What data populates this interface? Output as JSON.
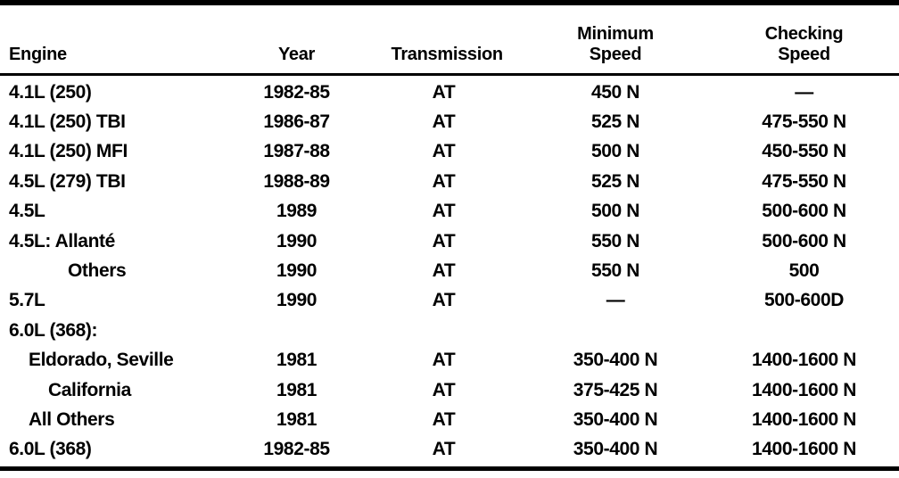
{
  "page": {
    "kind": "scanned specification table",
    "paper_color": "#ffffff",
    "ink_color": "#000000"
  },
  "table": {
    "columns": [
      {
        "id": "engine",
        "label": "Engine"
      },
      {
        "id": "year",
        "label": "Year"
      },
      {
        "id": "transmission",
        "label": "Transmission"
      },
      {
        "id": "minimum_speed",
        "label": "Minimum Speed"
      },
      {
        "id": "checking_speed",
        "label": "Checking Speed"
      }
    ],
    "rows": [
      {
        "engine": "4.1L (250)",
        "indent": 0,
        "year": "1982-85",
        "transmission": "AT",
        "minimum_speed": "450 N",
        "checking_speed": "—"
      },
      {
        "engine": "4.1L (250) TBI",
        "indent": 0,
        "year": "1986-87",
        "transmission": "AT",
        "minimum_speed": "525 N",
        "checking_speed": "475-550 N"
      },
      {
        "engine": "4.1L (250) MFI",
        "indent": 0,
        "year": "1987-88",
        "transmission": "AT",
        "minimum_speed": "500 N",
        "checking_speed": "450-550 N"
      },
      {
        "engine": "4.5L (279) TBI",
        "indent": 0,
        "year": "1988-89",
        "transmission": "AT",
        "minimum_speed": "525 N",
        "checking_speed": "475-550 N"
      },
      {
        "engine": "4.5L",
        "indent": 0,
        "year": "1989",
        "transmission": "AT",
        "minimum_speed": "500 N",
        "checking_speed": "500-600 N"
      },
      {
        "engine": "4.5L: Allanté",
        "indent": 0,
        "year": "1990",
        "transmission": "AT",
        "minimum_speed": "550 N",
        "checking_speed": "500-600 N"
      },
      {
        "engine": "Others",
        "indent": 3,
        "year": "1990",
        "transmission": "AT",
        "minimum_speed": "550 N",
        "checking_speed": "500"
      },
      {
        "engine": "5.7L",
        "indent": 0,
        "year": "1990",
        "transmission": "AT",
        "minimum_speed": "—",
        "checking_speed": "500-600D"
      },
      {
        "engine": "6.0L (368):",
        "indent": 0,
        "year": "",
        "transmission": "",
        "minimum_speed": "",
        "checking_speed": ""
      },
      {
        "engine": "Eldorado, Seville",
        "indent": 1,
        "year": "1981",
        "transmission": "AT",
        "minimum_speed": "350-400 N",
        "checking_speed": "1400-1600 N"
      },
      {
        "engine": "California",
        "indent": 2,
        "year": "1981",
        "transmission": "AT",
        "minimum_speed": "375-425 N",
        "checking_speed": "1400-1600 N"
      },
      {
        "engine": "All Others",
        "indent": 1,
        "year": "1981",
        "transmission": "AT",
        "minimum_speed": "350-400 N",
        "checking_speed": "1400-1600 N"
      },
      {
        "engine": "6.0L (368)",
        "indent": 0,
        "year": "1982-85",
        "transmission": "AT",
        "minimum_speed": "350-400 N",
        "checking_speed": "1400-1600 N"
      }
    ]
  }
}
